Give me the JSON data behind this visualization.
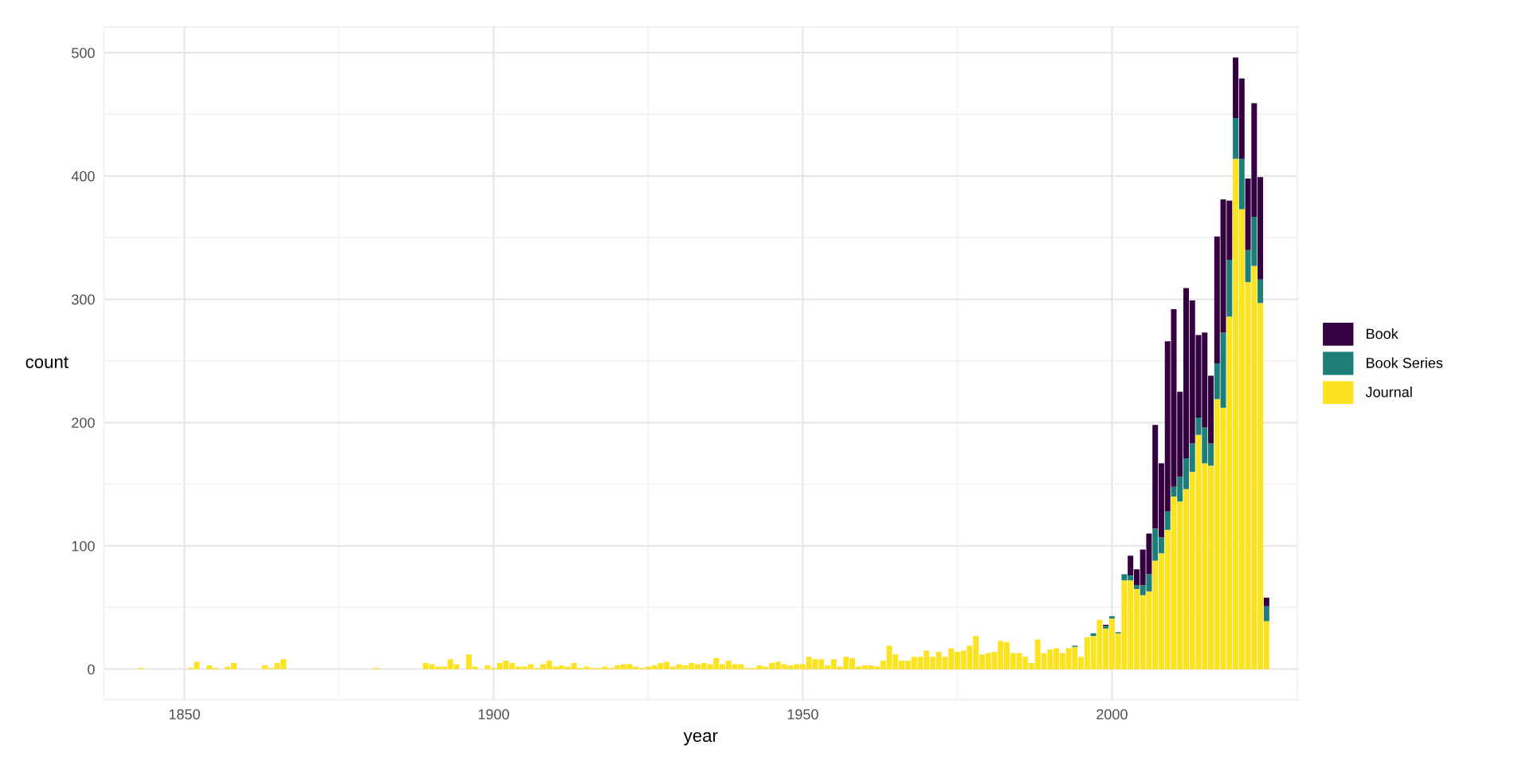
{
  "chart_data": {
    "type": "bar",
    "stacked": true,
    "xlabel": "year",
    "ylabel": "count",
    "xlim": [
      1837,
      2030
    ],
    "xticks": [
      1850,
      1900,
      1950,
      2000
    ],
    "ylim": [
      -25,
      521
    ],
    "yticks": [
      0,
      100,
      200,
      300,
      400,
      500
    ],
    "grid": true,
    "legend": "right",
    "series": [
      {
        "name": "Journal",
        "color": "#fbe321",
        "values": [
          1,
          1,
          6,
          3,
          1,
          2,
          5,
          3,
          1,
          5,
          8,
          1,
          5,
          4,
          2,
          2,
          8,
          4,
          12,
          2,
          3,
          1,
          5,
          7,
          5,
          2,
          2,
          4,
          1,
          4,
          7,
          2,
          3,
          2,
          5,
          1,
          2,
          1,
          1,
          2,
          1,
          3,
          4,
          4,
          2,
          1,
          2,
          3,
          5,
          6,
          2,
          4,
          3,
          5,
          4,
          5,
          4,
          9,
          4,
          7,
          4,
          4,
          1,
          1,
          3,
          2,
          5,
          6,
          4,
          3,
          4,
          4,
          10,
          8,
          8,
          3,
          8,
          2,
          10,
          9,
          2,
          3,
          3,
          2,
          7,
          19,
          12,
          7,
          7,
          10,
          10,
          15,
          10,
          14,
          10,
          17,
          14,
          15,
          19,
          27,
          12,
          13,
          14,
          23,
          22,
          13,
          13,
          10,
          5,
          24,
          13,
          16,
          17,
          13,
          17,
          18,
          10,
          26,
          27,
          40,
          33,
          41,
          29,
          72,
          72,
          65,
          60,
          63,
          88,
          94,
          113,
          140,
          136,
          146,
          160,
          190,
          167,
          165,
          219,
          212,
          286,
          414,
          373,
          314,
          327,
          297,
          39
        ]
      },
      {
        "name": "Book Series",
        "color": "#1e7f78",
        "values": [
          null,
          null,
          null,
          null,
          null,
          null,
          null,
          null,
          null,
          null,
          null,
          null,
          null,
          null,
          null,
          null,
          null,
          null,
          null,
          null,
          null,
          null,
          null,
          null,
          null,
          null,
          null,
          null,
          null,
          null,
          null,
          null,
          null,
          null,
          null,
          null,
          null,
          null,
          null,
          null,
          null,
          null,
          null,
          null,
          null,
          null,
          null,
          null,
          null,
          null,
          null,
          null,
          null,
          null,
          null,
          null,
          null,
          null,
          null,
          null,
          null,
          null,
          null,
          null,
          null,
          null,
          null,
          null,
          null,
          null,
          null,
          null,
          null,
          null,
          null,
          null,
          null,
          null,
          null,
          null,
          null,
          null,
          null,
          null,
          null,
          null,
          null,
          null,
          null,
          null,
          null,
          null,
          null,
          null,
          null,
          null,
          null,
          null,
          null,
          null,
          null,
          null,
          null,
          null,
          null,
          null,
          null,
          null,
          null,
          null,
          null,
          null,
          null,
          null,
          null,
          1,
          null,
          null,
          2,
          null,
          2,
          2,
          1,
          5,
          4,
          3,
          8,
          14,
          26,
          13,
          15,
          8,
          20,
          25,
          23,
          14,
          29,
          18,
          29,
          61,
          46,
          33,
          41,
          26,
          40,
          19,
          12
        ]
      },
      {
        "name": "Book",
        "color": "#35003f",
        "values": [
          null,
          null,
          null,
          null,
          null,
          null,
          null,
          null,
          null,
          null,
          null,
          null,
          null,
          null,
          null,
          null,
          null,
          null,
          null,
          null,
          null,
          null,
          null,
          null,
          null,
          null,
          null,
          null,
          null,
          null,
          null,
          null,
          null,
          null,
          null,
          null,
          null,
          null,
          null,
          null,
          null,
          null,
          null,
          null,
          null,
          null,
          null,
          null,
          null,
          null,
          null,
          null,
          null,
          null,
          null,
          null,
          null,
          null,
          null,
          null,
          null,
          null,
          null,
          null,
          null,
          null,
          null,
          null,
          null,
          null,
          null,
          null,
          null,
          null,
          null,
          null,
          null,
          null,
          null,
          null,
          null,
          null,
          null,
          null,
          null,
          null,
          null,
          null,
          null,
          null,
          null,
          null,
          null,
          null,
          null,
          null,
          null,
          null,
          null,
          null,
          null,
          null,
          null,
          null,
          null,
          null,
          null,
          null,
          null,
          null,
          null,
          null,
          null,
          null,
          null,
          null,
          null,
          null,
          null,
          null,
          1,
          null,
          null,
          null,
          16,
          13,
          29,
          33,
          84,
          60,
          138,
          144,
          69,
          138,
          116,
          67,
          77,
          55,
          103,
          108,
          48,
          49,
          65,
          58,
          92,
          83,
          7
        ]
      }
    ],
    "x": [
      1843,
      1851,
      1852,
      1854,
      1855,
      1857,
      1858,
      1863,
      1864,
      1865,
      1866,
      1881,
      1889,
      1890,
      1891,
      1892,
      1893,
      1894,
      1896,
      1897,
      1899,
      1900,
      1901,
      1902,
      1903,
      1904,
      1905,
      1906,
      1907,
      1908,
      1909,
      1910,
      1911,
      1912,
      1913,
      1914,
      1915,
      1916,
      1917,
      1918,
      1919,
      1920,
      1921,
      1922,
      1923,
      1924,
      1925,
      1926,
      1927,
      1928,
      1929,
      1930,
      1931,
      1932,
      1933,
      1934,
      1935,
      1936,
      1937,
      1938,
      1939,
      1940,
      1941,
      1942,
      1943,
      1944,
      1945,
      1946,
      1947,
      1948,
      1949,
      1950,
      1951,
      1952,
      1953,
      1954,
      1955,
      1956,
      1957,
      1958,
      1959,
      1960,
      1961,
      1962,
      1963,
      1964,
      1965,
      1966,
      1967,
      1968,
      1969,
      1970,
      1971,
      1972,
      1973,
      1974,
      1975,
      1976,
      1977,
      1978,
      1979,
      1980,
      1981,
      1982,
      1983,
      1984,
      1985,
      1986,
      1987,
      1988,
      1989,
      1990,
      1991,
      1992,
      1993,
      1994,
      1995,
      1996,
      1997,
      1998,
      1999,
      2000,
      2001,
      2002,
      2003,
      2004,
      2005,
      2006,
      2007,
      2008,
      2009,
      2010,
      2011,
      2012,
      2013,
      2014,
      2015,
      2016,
      2017,
      2018,
      2019,
      2020,
      2021,
      2022,
      2023,
      2024,
      2025
    ]
  }
}
